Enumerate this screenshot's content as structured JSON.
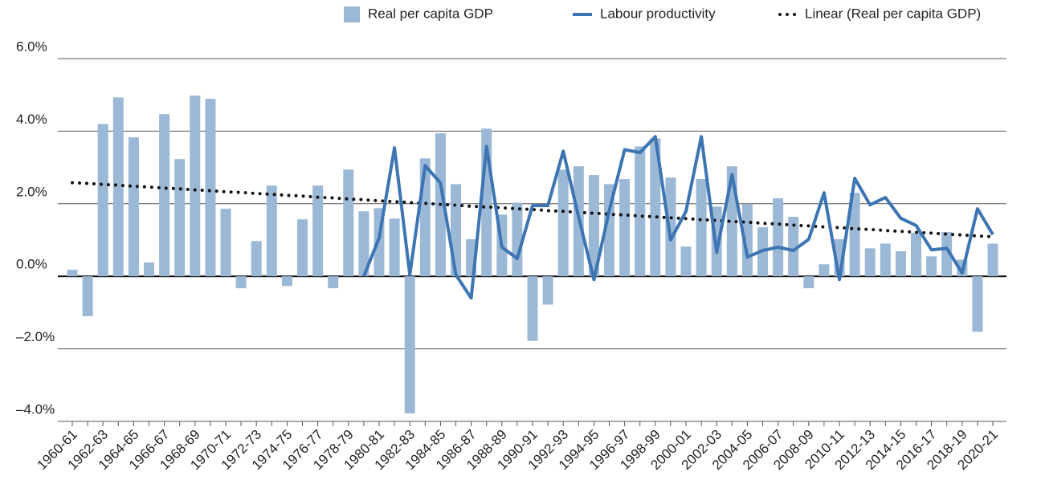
{
  "chart_data": {
    "type": "bar",
    "categories": [
      "1960-61",
      null,
      "1962-63",
      null,
      "1964-65",
      null,
      "1966-67",
      null,
      "1968-69",
      null,
      "1970-71",
      null,
      "1972-73",
      null,
      "1974-75",
      null,
      "1976-77",
      null,
      "1978-79",
      null,
      "1980-81",
      null,
      "1982-83",
      null,
      "1984-85",
      null,
      "1986-87",
      null,
      "1988-89",
      null,
      "1990-91",
      null,
      "1992-93",
      null,
      "1994-95",
      null,
      "1996-97",
      null,
      "1998-99",
      null,
      "2000-01",
      null,
      "2002-03",
      null,
      "2004-05",
      null,
      "2006-07",
      null,
      "2008-09",
      null,
      "2010-11",
      null,
      "2012-13",
      null,
      "2014-15",
      null,
      "2016-17",
      null,
      "2018-19",
      null,
      "2020-21"
    ],
    "series": [
      {
        "name": "Real per capita GDP",
        "type": "bar",
        "color": "#9bb8d6",
        "values": [
          0.18,
          -1.1,
          4.2,
          4.93,
          3.83,
          0.38,
          4.47,
          3.23,
          4.98,
          4.89,
          1.86,
          -0.33,
          0.97,
          2.5,
          -0.27,
          1.57,
          2.5,
          -0.33,
          2.94,
          1.79,
          1.88,
          1.59,
          -3.78,
          3.25,
          3.94,
          2.54,
          1.02,
          4.07,
          1.7,
          2.03,
          -1.78,
          -0.78,
          2.94,
          3.03,
          2.79,
          2.54,
          2.68,
          3.58,
          3.8,
          2.72,
          0.82,
          2.68,
          1.92,
          3.03,
          1.99,
          1.35,
          2.15,
          1.64,
          -0.33,
          0.33,
          1.02,
          2.3,
          0.77,
          0.9,
          0.69,
          1.2,
          0.55,
          1.22,
          0.46,
          -1.53,
          0.9
        ]
      },
      {
        "name": "Labour productivity",
        "type": "line",
        "color": "#3d75b3",
        "values": [
          null,
          null,
          null,
          null,
          null,
          null,
          null,
          null,
          null,
          null,
          null,
          null,
          null,
          null,
          null,
          null,
          null,
          null,
          null,
          0.0,
          1.06,
          3.54,
          0.04,
          3.05,
          2.57,
          0.04,
          -0.6,
          3.58,
          0.8,
          0.49,
          1.95,
          1.95,
          3.45,
          1.64,
          -0.09,
          1.81,
          3.49,
          3.41,
          3.85,
          1.0,
          1.79,
          3.85,
          0.66,
          2.8,
          0.53,
          0.71,
          0.8,
          0.71,
          1.02,
          2.3,
          -0.09,
          2.7,
          1.97,
          2.17,
          1.6,
          1.4,
          0.73,
          0.77,
          0.09,
          1.86,
          1.15
        ]
      },
      {
        "name": "Linear (Real per capita GDP)",
        "type": "line",
        "style": "dotted",
        "color": "#111111",
        "values": [
          2.58,
          2.56,
          2.53,
          2.51,
          2.48,
          2.46,
          2.43,
          2.41,
          2.38,
          2.36,
          2.33,
          2.31,
          2.28,
          2.26,
          2.23,
          2.21,
          2.18,
          2.16,
          2.13,
          2.11,
          2.08,
          2.06,
          2.03,
          2.01,
          1.98,
          1.96,
          1.93,
          1.91,
          1.89,
          1.86,
          1.84,
          1.81,
          1.79,
          1.76,
          1.74,
          1.71,
          1.69,
          1.66,
          1.64,
          1.61,
          1.59,
          1.56,
          1.54,
          1.51,
          1.49,
          1.46,
          1.44,
          1.41,
          1.39,
          1.36,
          1.34,
          1.31,
          1.29,
          1.26,
          1.24,
          1.21,
          1.19,
          1.16,
          1.14,
          1.11,
          1.09
        ]
      }
    ],
    "ylim": [
      -4,
      6
    ],
    "yticks": [
      {
        "value": -4,
        "label": "–4.0%"
      },
      {
        "value": -2,
        "label": "–2.0%"
      },
      {
        "value": 0,
        "label": "0.0%"
      },
      {
        "value": 2,
        "label": "2.0%"
      },
      {
        "value": 4,
        "label": "4.0%"
      },
      {
        "value": 6,
        "label": "6.0%"
      }
    ],
    "grid": true,
    "legend": "top-right"
  }
}
